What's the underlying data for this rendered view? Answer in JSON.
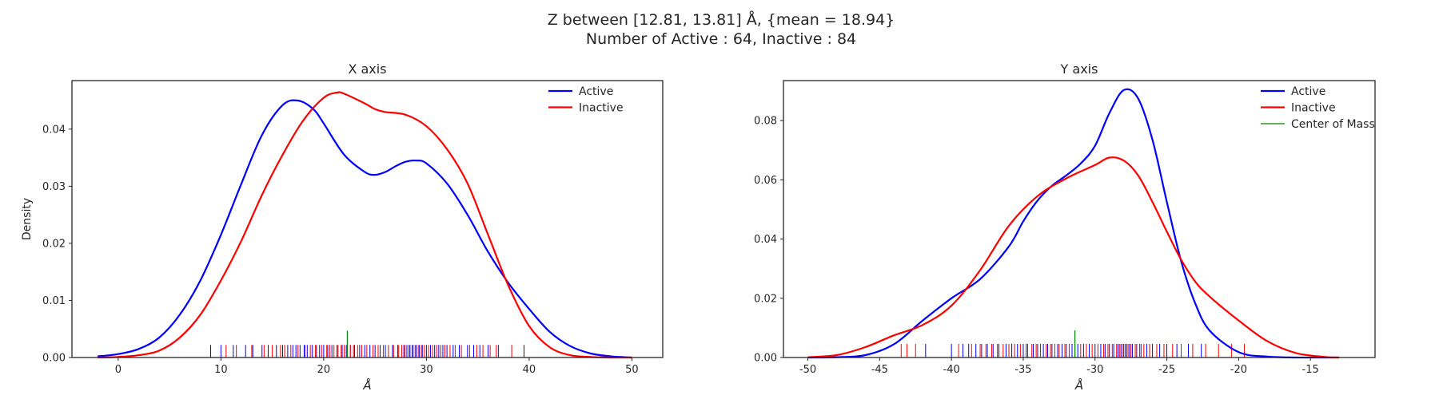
{
  "figure": {
    "title_line1": "Z between [12.81, 13.81] Å, {mean = 18.94}",
    "title_line2": "Number of Active : 64, Inactive : 84"
  },
  "colors": {
    "active": "#0000ff",
    "inactive": "#ff0000",
    "center_of_mass": "#008000"
  },
  "chart_data": [
    {
      "type": "line",
      "title": "X axis",
      "xlabel": "Å",
      "ylabel": "Density",
      "xlim": [
        -4.5,
        53
      ],
      "ylim": [
        0,
        0.0485
      ],
      "xticks": [
        0,
        10,
        20,
        30,
        40,
        50
      ],
      "yticks": [
        0.0,
        0.01,
        0.02,
        0.03,
        0.04
      ],
      "ytick_labels": [
        "0.00",
        "0.01",
        "0.02",
        "0.03",
        "0.04"
      ],
      "legend": {
        "position": "top-right",
        "entries": [
          "Active",
          "Inactive"
        ]
      },
      "series": [
        {
          "name": "Active",
          "color": "#0000ff",
          "x": [
            -2,
            0,
            2,
            4,
            6,
            8,
            10,
            12,
            14,
            16,
            17.5,
            19,
            20,
            22,
            24,
            25,
            26,
            27,
            28,
            29,
            30,
            32,
            34,
            36,
            38,
            40,
            42,
            44,
            46,
            48,
            50
          ],
          "y": [
            0.0002,
            0.0006,
            0.0015,
            0.0035,
            0.0075,
            0.0135,
            0.0215,
            0.0305,
            0.039,
            0.0442,
            0.045,
            0.0435,
            0.041,
            0.0355,
            0.0325,
            0.032,
            0.0325,
            0.0335,
            0.0343,
            0.0345,
            0.034,
            0.0305,
            0.025,
            0.0185,
            0.013,
            0.0085,
            0.0045,
            0.002,
            0.0007,
            0.0002,
            0.0
          ]
        },
        {
          "name": "Inactive",
          "color": "#ff0000",
          "x": [
            -2,
            0,
            2,
            4,
            6,
            8,
            10,
            12,
            14,
            16,
            18,
            20,
            21.3,
            22,
            24,
            25,
            26,
            28,
            30,
            32,
            34,
            36,
            38,
            40,
            42,
            44,
            46,
            48,
            50
          ],
          "y": [
            0.0,
            0.0001,
            0.0004,
            0.0012,
            0.0035,
            0.0075,
            0.0135,
            0.0205,
            0.0285,
            0.0355,
            0.0415,
            0.0455,
            0.0464,
            0.0462,
            0.0445,
            0.0435,
            0.043,
            0.0425,
            0.0405,
            0.0365,
            0.0305,
            0.0215,
            0.0125,
            0.0055,
            0.0018,
            0.0004,
            0.0001,
            0.0,
            0.0
          ]
        }
      ],
      "rug": {
        "height": 0.0022,
        "active": [
          9,
          10,
          11.2,
          12.4,
          13.1,
          14,
          14.6,
          15.4,
          16,
          16.5,
          17,
          17.3,
          17.7,
          18.1,
          18.4,
          18.9,
          19.3,
          19.6,
          20,
          20.4,
          20.8,
          21.3,
          21.8,
          22.2,
          22.6,
          23,
          23.5,
          24,
          24.5,
          25,
          25.5,
          26,
          26.7,
          27.2,
          27.8,
          28.1,
          28.4,
          28.7,
          29,
          29.3,
          29.6,
          30,
          30.4,
          30.8,
          31.2,
          31.6,
          32,
          32.6,
          33.2,
          34,
          34.6,
          35.2,
          36,
          37,
          39.5
        ],
        "inactive": [
          10.5,
          11.5,
          13,
          14.2,
          15,
          15.8,
          16.2,
          16.8,
          17.5,
          18.2,
          18.7,
          19.2,
          19.8,
          20.3,
          20.6,
          21,
          21.4,
          21.7,
          22,
          22.3,
          22.6,
          22.9,
          23.3,
          23.7,
          24.2,
          24.8,
          25.3,
          25.8,
          26.3,
          26.8,
          27.3,
          27.6,
          27.9,
          28.3,
          28.6,
          28.9,
          29.2,
          29.5,
          29.8,
          30.2,
          30.6,
          31,
          31.4,
          31.8,
          32.3,
          32.8,
          33.4,
          34.2,
          34.9,
          35.5,
          36.2,
          36.8,
          38.3
        ],
        "center_of_mass": 22.3,
        "center_height": 0.0047
      }
    },
    {
      "type": "line",
      "title": "Y axis",
      "xlabel": "Å",
      "ylabel": "",
      "xlim": [
        -51.7,
        -10.5
      ],
      "ylim": [
        0,
        0.0935
      ],
      "xticks": [
        -50,
        -45,
        -40,
        -35,
        -30,
        -25,
        -20,
        -15
      ],
      "yticks": [
        0.0,
        0.02,
        0.04,
        0.06,
        0.08
      ],
      "ytick_labels": [
        "0.00",
        "0.02",
        "0.04",
        "0.06",
        "0.08"
      ],
      "legend": {
        "position": "top-right",
        "entries": [
          "Active",
          "Inactive",
          "Center of Mass"
        ]
      },
      "series": [
        {
          "name": "Active",
          "color": "#0000ff",
          "x": [
            -50,
            -48,
            -46,
            -44,
            -42,
            -40,
            -38,
            -36,
            -35,
            -34,
            -33,
            -32,
            -31,
            -30,
            -29,
            -28,
            -27,
            -26,
            -25,
            -24,
            -23,
            -22,
            -20,
            -18,
            -16,
            -14,
            -13
          ],
          "y": [
            0.0,
            0.0001,
            0.0008,
            0.0045,
            0.0125,
            0.02,
            0.0265,
            0.0375,
            0.046,
            0.053,
            0.058,
            0.0615,
            0.0655,
            0.0715,
            0.0825,
            0.0903,
            0.0875,
            0.0735,
            0.0525,
            0.0325,
            0.018,
            0.009,
            0.0018,
            0.0003,
            0.0,
            0.0,
            0.0
          ]
        },
        {
          "name": "Inactive",
          "color": "#ff0000",
          "x": [
            -50,
            -48,
            -46,
            -44,
            -42,
            -40,
            -38,
            -36,
            -34,
            -32,
            -30,
            -29,
            -28,
            -27,
            -26,
            -25,
            -24,
            -23,
            -22,
            -20,
            -18,
            -16,
            -14,
            -13
          ],
          "y": [
            0.0001,
            0.0008,
            0.0035,
            0.0075,
            0.011,
            0.0175,
            0.0295,
            0.0445,
            0.0545,
            0.0605,
            0.065,
            0.0675,
            0.0665,
            0.0615,
            0.0525,
            0.0425,
            0.033,
            0.0255,
            0.0205,
            0.0125,
            0.0055,
            0.0015,
            0.0002,
            0.0
          ]
        }
      ],
      "rug": {
        "height": 0.0046,
        "active": [
          -41.8,
          -40,
          -39.2,
          -38.8,
          -38.3,
          -37.9,
          -37.5,
          -37.1,
          -36.7,
          -36.2,
          -35.8,
          -35.4,
          -35,
          -34.7,
          -34.3,
          -34,
          -33.6,
          -33.3,
          -33,
          -32.6,
          -32.3,
          -32,
          -31.6,
          -31.2,
          -30.8,
          -30.4,
          -30,
          -29.6,
          -29.3,
          -29,
          -28.7,
          -28.4,
          -28.2,
          -28,
          -27.8,
          -27.6,
          -27.4,
          -27.1,
          -26.8,
          -26.4,
          -26,
          -25.5,
          -25,
          -24.3,
          -23.5,
          -22.6
        ],
        "inactive": [
          -43.5,
          -43.1,
          -42.5,
          -39.5,
          -38.6,
          -38,
          -37.6,
          -37.2,
          -36.8,
          -36.4,
          -36,
          -35.6,
          -35.2,
          -34.8,
          -34.4,
          -34.1,
          -33.8,
          -33.4,
          -33.1,
          -32.8,
          -32.5,
          -32.1,
          -31.8,
          -31.4,
          -31,
          -30.6,
          -30.2,
          -29.8,
          -29.4,
          -29.1,
          -28.8,
          -28.5,
          -28.3,
          -28.1,
          -27.9,
          -27.7,
          -27.5,
          -27.2,
          -26.9,
          -26.6,
          -26.2,
          -25.7,
          -25.2,
          -24.6,
          -24,
          -23.2,
          -22.3,
          -21.4,
          -20.5,
          -19.6
        ],
        "center_of_mass": -31.4,
        "center_height": 0.0092
      }
    }
  ]
}
